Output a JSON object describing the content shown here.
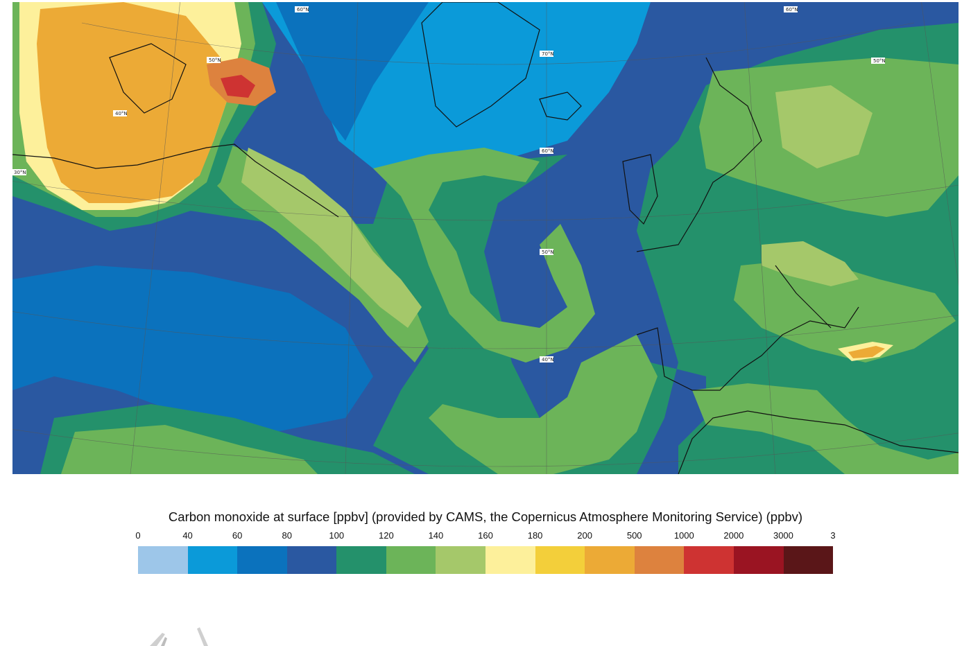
{
  "map": {
    "lat_labels": [
      "60°N",
      "60°N",
      "70°N",
      "50°N",
      "40°N",
      "30°N",
      "60°N",
      "50°N",
      "40°N",
      "50°N"
    ]
  },
  "legend": {
    "title": "Carbon monoxide at surface [ppbv] (provided by CAMS, the Copernicus Atmosphere Monitoring Service) (ppbv)",
    "ticks": [
      "0",
      "40",
      "60",
      "80",
      "100",
      "120",
      "140",
      "160",
      "180",
      "200",
      "500",
      "1000",
      "2000",
      "3000",
      "3"
    ],
    "colors": [
      "#9dc6e9",
      "#0b9ad9",
      "#0b72bd",
      "#2a58a1",
      "#24916b",
      "#6cb459",
      "#a5c86a",
      "#fdf09b",
      "#f3cf3a",
      "#ecaa36",
      "#dd823e",
      "#ce3332",
      "#9a1422",
      "#5a1618"
    ]
  }
}
